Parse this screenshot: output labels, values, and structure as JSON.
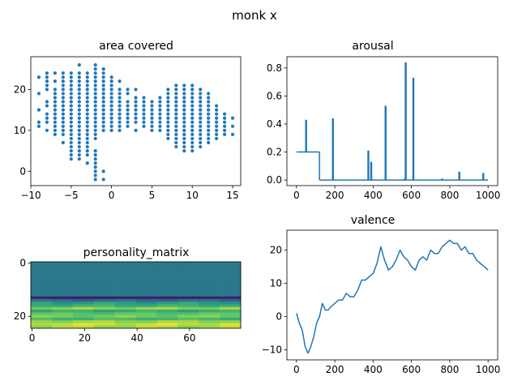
{
  "figure": {
    "title": "monk x"
  },
  "chart_data": [
    {
      "type": "scatter",
      "title": "area covered",
      "xlim": [
        -10,
        16
      ],
      "ylim": [
        -3.5,
        28
      ],
      "xticks": [
        -10,
        -5,
        0,
        5,
        10,
        15
      ],
      "yticks": [
        0,
        10,
        20
      ],
      "color": "#1f77b4",
      "columns": [
        {
          "x": -9,
          "y": [
            11,
            12,
            15,
            19,
            23
          ]
        },
        {
          "x": -8,
          "y": [
            10,
            12,
            13,
            14,
            16,
            17,
            20,
            21,
            22,
            23,
            24
          ]
        },
        {
          "x": -7,
          "y": [
            9,
            10,
            11,
            12,
            13,
            14,
            15,
            16,
            17,
            18,
            19,
            20,
            22,
            24
          ]
        },
        {
          "x": -6,
          "y": [
            7,
            9,
            10,
            11,
            12,
            13,
            14,
            15,
            16,
            17,
            18,
            19,
            20,
            21,
            22,
            23,
            24
          ]
        },
        {
          "x": -5,
          "y": [
            3,
            4,
            5,
            6,
            7,
            8,
            9,
            10,
            11,
            12,
            13,
            14,
            15,
            16,
            17,
            18,
            19,
            20,
            21,
            22,
            23,
            24
          ]
        },
        {
          "x": -4,
          "y": [
            3,
            4,
            5,
            6,
            7,
            8,
            9,
            10,
            11,
            12,
            13,
            14,
            15,
            16,
            17,
            18,
            19,
            20,
            21,
            22,
            23,
            24,
            26
          ]
        },
        {
          "x": -3,
          "y": [
            2,
            4,
            5,
            6,
            7,
            8,
            9,
            10,
            11,
            12,
            13,
            14,
            15,
            16,
            17,
            18,
            19,
            20,
            21,
            22,
            23,
            24
          ]
        },
        {
          "x": -2,
          "y": [
            -2,
            -1,
            0,
            1,
            2,
            3,
            4,
            5,
            8,
            9,
            10,
            11,
            12,
            13,
            14,
            15,
            16,
            17,
            18,
            19,
            20,
            21,
            22,
            23,
            24,
            25,
            26
          ]
        },
        {
          "x": -1,
          "y": [
            -2,
            0,
            10,
            11,
            12,
            13,
            14,
            15,
            16,
            17,
            18,
            19,
            20,
            21,
            22,
            23,
            24,
            25
          ]
        },
        {
          "x": 0,
          "y": [
            10,
            11,
            12,
            13,
            14,
            15,
            16,
            17,
            18,
            19,
            20,
            21,
            22,
            23
          ]
        },
        {
          "x": 1,
          "y": [
            10,
            11,
            12,
            13,
            14,
            15,
            16,
            17,
            18,
            19,
            20,
            22
          ]
        },
        {
          "x": 2,
          "y": [
            11,
            12,
            13,
            14,
            15,
            16,
            17,
            19,
            20
          ]
        },
        {
          "x": 3,
          "y": [
            10,
            12,
            13,
            14,
            15,
            16,
            17,
            18,
            20
          ]
        },
        {
          "x": 4,
          "y": [
            11,
            12,
            13,
            14,
            15,
            16,
            17,
            18
          ]
        },
        {
          "x": 5,
          "y": [
            10,
            11,
            12,
            13,
            14,
            15,
            16,
            17
          ]
        },
        {
          "x": 6,
          "y": [
            10,
            11,
            12,
            13,
            14,
            15,
            16,
            17,
            18
          ]
        },
        {
          "x": 7,
          "y": [
            8,
            9,
            10,
            11,
            12,
            13,
            14,
            15,
            16,
            17,
            18,
            19,
            20
          ]
        },
        {
          "x": 8,
          "y": [
            6,
            7,
            8,
            9,
            10,
            11,
            12,
            13,
            14,
            15,
            16,
            17,
            18,
            19,
            20,
            21
          ]
        },
        {
          "x": 9,
          "y": [
            5,
            6,
            7,
            8,
            9,
            10,
            11,
            12,
            13,
            14,
            15,
            16,
            17,
            18,
            19,
            20,
            21
          ]
        },
        {
          "x": 10,
          "y": [
            5,
            6,
            7,
            8,
            9,
            10,
            11,
            12,
            13,
            14,
            15,
            16,
            17,
            18,
            19,
            20,
            21
          ]
        },
        {
          "x": 11,
          "y": [
            6,
            7,
            8,
            9,
            10,
            11,
            12,
            13,
            14,
            15,
            16,
            17,
            18,
            19,
            20
          ]
        },
        {
          "x": 12,
          "y": [
            7,
            8,
            9,
            10,
            11,
            12,
            13,
            14,
            15,
            16,
            17,
            18,
            19
          ]
        },
        {
          "x": 13,
          "y": [
            8,
            9,
            10,
            11,
            12,
            13,
            14,
            15,
            16
          ]
        },
        {
          "x": 14,
          "y": [
            9,
            10,
            11,
            12,
            13,
            14
          ]
        },
        {
          "x": 15,
          "y": [
            9,
            11,
            13
          ]
        }
      ]
    },
    {
      "type": "line",
      "title": "arousal",
      "xlim": [
        -50,
        1050
      ],
      "ylim": [
        -0.04,
        0.88
      ],
      "xticks": [
        0,
        200,
        400,
        600,
        800,
        1000
      ],
      "yticks": [
        0.0,
        0.2,
        0.4,
        0.6,
        0.8
      ],
      "ytick_labels": [
        "0.0",
        "0.2",
        "0.4",
        "0.6",
        "0.8"
      ],
      "color": "#1f77b4",
      "baseline_segments": [
        {
          "x": [
            0,
            120
          ],
          "y": 0.2
        },
        {
          "x": [
            120,
            1000
          ],
          "y": 0.0
        }
      ],
      "spikes": [
        {
          "x": 50,
          "y": 0.43
        },
        {
          "x": 190,
          "y": 0.44
        },
        {
          "x": 375,
          "y": 0.21
        },
        {
          "x": 390,
          "y": 0.13
        },
        {
          "x": 465,
          "y": 0.53
        },
        {
          "x": 565,
          "y": 0.01
        },
        {
          "x": 570,
          "y": 0.84
        },
        {
          "x": 610,
          "y": 0.73
        },
        {
          "x": 760,
          "y": 0.01
        },
        {
          "x": 850,
          "y": 0.06
        },
        {
          "x": 975,
          "y": 0.05
        }
      ]
    },
    {
      "type": "heatmap",
      "title": "personality_matrix",
      "xlim": [
        -0.5,
        79.5
      ],
      "ylim": [
        24.5,
        -0.5
      ],
      "xticks": [
        0,
        20,
        40,
        60
      ],
      "yticks": [
        0,
        20
      ],
      "colormap": "viridis",
      "rows": 25,
      "cols": 80,
      "row_values": [
        0.4,
        0.4,
        0.4,
        0.4,
        0.4,
        0.4,
        0.4,
        0.4,
        0.4,
        0.4,
        0.4,
        0.4,
        0.4,
        0.1,
        0.35,
        0.55,
        0.62,
        0.82,
        0.6,
        0.72,
        0.78,
        0.66,
        0.84,
        0.92,
        0.86
      ]
    },
    {
      "type": "line",
      "title": "valence",
      "xlim": [
        -50,
        1050
      ],
      "ylim": [
        -13,
        26
      ],
      "xticks": [
        0,
        200,
        400,
        600,
        800,
        1000
      ],
      "yticks": [
        -10,
        0,
        10,
        20
      ],
      "color": "#1f77b4",
      "x": [
        0,
        15,
        30,
        45,
        60,
        75,
        90,
        105,
        120,
        135,
        150,
        165,
        180,
        200,
        220,
        240,
        260,
        280,
        300,
        320,
        340,
        360,
        380,
        400,
        420,
        440,
        460,
        480,
        500,
        520,
        540,
        560,
        580,
        600,
        620,
        640,
        660,
        680,
        700,
        720,
        740,
        760,
        780,
        800,
        820,
        840,
        860,
        880,
        900,
        920,
        940,
        960,
        980,
        1000
      ],
      "y": [
        1,
        -2,
        -4,
        -9,
        -11,
        -9,
        -6,
        -2,
        0,
        4,
        2,
        2,
        3,
        4,
        5,
        5,
        7,
        6,
        6,
        8,
        11,
        11,
        12,
        13,
        16,
        21,
        17,
        14,
        15,
        17,
        20,
        18,
        17,
        15,
        14,
        17,
        18,
        17,
        20,
        19,
        19,
        21,
        22,
        23,
        22,
        22,
        20,
        21,
        19,
        19,
        17,
        16,
        15,
        14
      ]
    }
  ]
}
